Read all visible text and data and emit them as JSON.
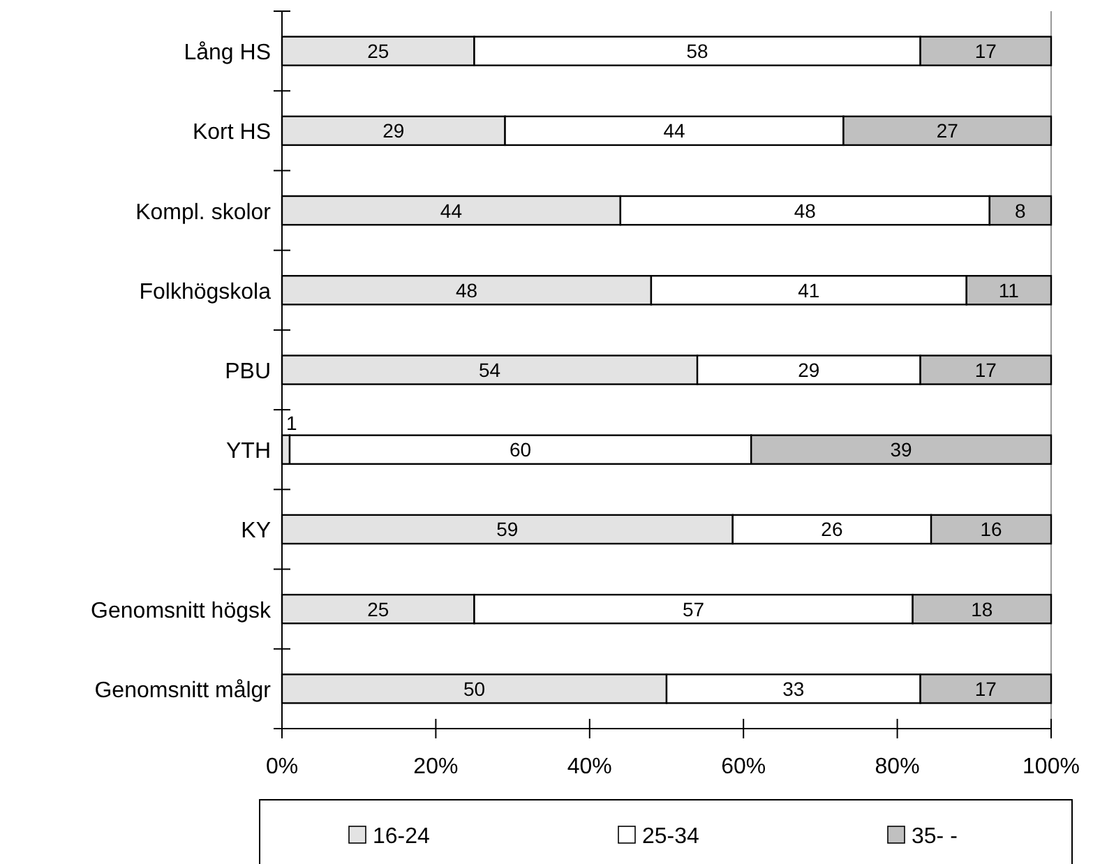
{
  "chart_data": {
    "type": "bar",
    "orientation": "horizontal",
    "stacked": true,
    "categories": [
      "Lång HS",
      "Kort HS",
      "Kompl. skolor",
      "Folkhögskola",
      "PBU",
      "YTH",
      "KY",
      "Genomsnitt högsk",
      "Genomsnitt målgr"
    ],
    "series": [
      {
        "name": "16-24",
        "color": "#e3e3e3",
        "values": [
          25,
          29,
          44,
          48,
          54,
          1,
          58.6,
          25,
          50
        ],
        "value_labels": [
          "25",
          "29",
          "44",
          "48",
          "54",
          "1",
          "59",
          "25",
          "50"
        ]
      },
      {
        "name": "25-34",
        "color": "#ffffff",
        "values": [
          58,
          44,
          48,
          41,
          29,
          60,
          25.8,
          57,
          33
        ],
        "value_labels": [
          "58",
          "44",
          "48",
          "41",
          "29",
          "60",
          "26",
          "57",
          "33"
        ]
      },
      {
        "name": "35- -",
        "color": "#c0c0c0",
        "values": [
          17,
          27,
          8,
          11,
          17,
          39,
          15.6,
          18,
          17
        ],
        "value_labels": [
          "17",
          "27",
          "8",
          "11",
          "17",
          "39",
          "16",
          "18",
          "17"
        ]
      }
    ],
    "xlim": [
      0,
      100
    ],
    "xticks": [
      {
        "value": 0,
        "label": "0%"
      },
      {
        "value": 20,
        "label": "20%"
      },
      {
        "value": 40,
        "label": "40%"
      },
      {
        "value": 60,
        "label": "60%"
      },
      {
        "value": 80,
        "label": "80%"
      },
      {
        "value": 100,
        "label": "100%"
      }
    ],
    "grid": false,
    "legend": "bottom"
  }
}
